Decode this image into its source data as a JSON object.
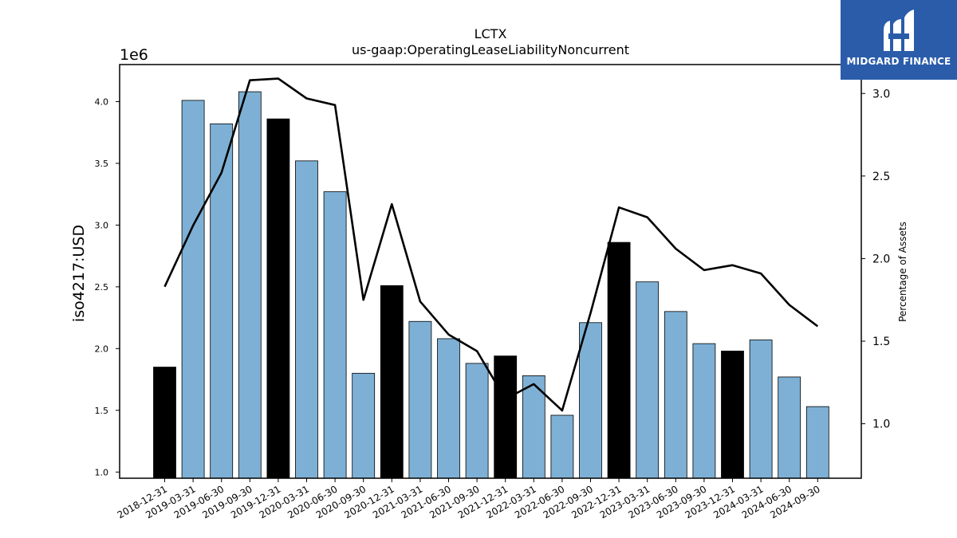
{
  "chart_data": {
    "type": "bar",
    "title": "LCTX",
    "subtitle": "us-gaap:OperatingLeaseLiabilityNoncurrent",
    "ylabel": "iso4217:USD",
    "y_offset_label": "1e6",
    "y2label": "Percentage of Assets",
    "ylim": [
      0.95,
      4.3
    ],
    "y2lim": [
      0.67,
      3.175
    ],
    "yticks": [
      "1.0",
      "1.5",
      "2.0",
      "2.5",
      "3.0",
      "3.5",
      "4.0"
    ],
    "y2ticks": [
      "1.0",
      "1.5",
      "2.0",
      "2.5",
      "3.0"
    ],
    "categories": [
      "2018-12-31",
      "2019-03-31",
      "2019-06-30",
      "2019-09-30",
      "2019-12-31",
      "2020-03-31",
      "2020-06-30",
      "2020-09-30",
      "2020-12-31",
      "2021-03-31",
      "2021-06-30",
      "2021-09-30",
      "2021-12-31",
      "2022-03-31",
      "2022-06-30",
      "2022-09-30",
      "2022-12-31",
      "2023-03-31",
      "2023-06-30",
      "2023-09-30",
      "2023-12-31",
      "2024-03-31",
      "2024-06-30",
      "2024-09-30"
    ],
    "series": [
      {
        "values": [
          1.85,
          4.01,
          3.82,
          4.08,
          3.86,
          3.52,
          3.27,
          1.8,
          2.51,
          2.22,
          2.08,
          1.88,
          1.94,
          1.78,
          1.46,
          2.21,
          2.86,
          2.54,
          2.3,
          2.04,
          1.98,
          2.07,
          1.77,
          1.53
        ],
        "scale": 1000000,
        "bar_colors": [
          "#000000",
          "#7eb0d5",
          "#7eb0d5",
          "#7eb0d5",
          "#000000",
          "#7eb0d5",
          "#7eb0d5",
          "#7eb0d5",
          "#000000",
          "#7eb0d5",
          "#7eb0d5",
          "#7eb0d5",
          "#000000",
          "#7eb0d5",
          "#7eb0d5",
          "#7eb0d5",
          "#000000",
          "#7eb0d5",
          "#7eb0d5",
          "#7eb0d5",
          "#000000",
          "#7eb0d5",
          "#7eb0d5",
          "#7eb0d5"
        ]
      },
      {
        "type": "line",
        "axis": "right",
        "color": "#000000",
        "values": [
          1.83,
          2.2,
          2.52,
          3.08,
          3.09,
          2.97,
          2.93,
          1.75,
          2.33,
          1.74,
          1.54,
          1.44,
          1.15,
          1.24,
          1.08,
          1.67,
          2.31,
          2.25,
          2.06,
          1.93,
          1.96,
          1.91,
          1.72,
          1.59
        ]
      }
    ],
    "grid": false
  },
  "logo": {
    "text": "MIDGARD FINANCE",
    "background": "#2a5caa"
  }
}
